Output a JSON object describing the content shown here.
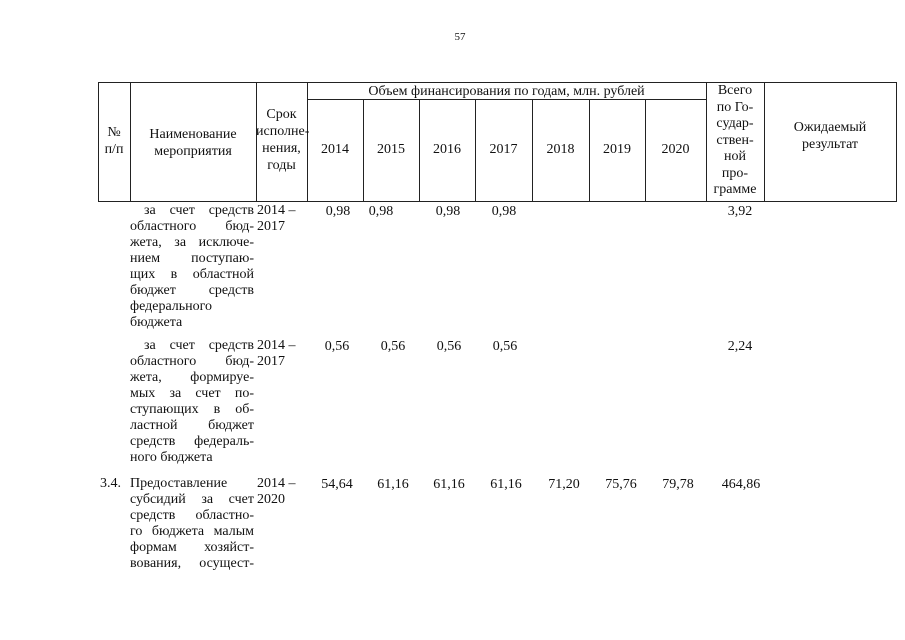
{
  "page_number": "57",
  "header": {
    "col_num_line1": "№",
    "col_num_line2": "п/п",
    "col_name_line1": "Наименование",
    "col_name_line2": "мероприятия",
    "col_term": [
      "Срок",
      "исполне-",
      "нения,",
      "годы"
    ],
    "funding_title": "Объем финансирования по годам, млн. рублей",
    "years": [
      "2014",
      "2015",
      "2016",
      "2017",
      "2018",
      "2019",
      "2020"
    ],
    "total": [
      "Всего",
      "по Го-",
      "судар-",
      "ствен-",
      "ной",
      "про-",
      "грамме"
    ],
    "result_line1": "Ожидаемый",
    "result_line2": "результат"
  },
  "rows": [
    {
      "num": "",
      "name": [
        "за счет средств",
        "областного бюд-",
        "жета, за исключе-",
        "нием поступаю-",
        "щих в областной",
        "бюджет средств",
        "федерального",
        "бюджета"
      ],
      "term": [
        "2014 –",
        "2017"
      ],
      "values": [
        "0,98",
        "0,98",
        "0,98",
        "0,98",
        "",
        "",
        ""
      ],
      "total": "3,92",
      "result": ""
    },
    {
      "num": "",
      "name": [
        "за счет средств",
        "областного бюд-",
        "жета, формируе-",
        "мых за счет по-",
        "ступающих в об-",
        "ластной бюджет",
        "средств федераль-",
        "ного бюджета"
      ],
      "term": [
        "2014 –",
        "2017"
      ],
      "values": [
        "0,56",
        "0,56",
        "0,56",
        "0,56",
        "",
        "",
        ""
      ],
      "total": "2,24",
      "result": ""
    },
    {
      "num": "3.4.",
      "name": [
        "Предоставление",
        "субсидий за счет",
        "средств областно-",
        "го бюджета малым",
        "формам хозяйст-",
        "вования, осущест-"
      ],
      "term": [
        "2014 –",
        "2020"
      ],
      "values": [
        "54,64",
        "61,16",
        "61,16",
        "61,16",
        "71,20",
        "75,76",
        "79,78"
      ],
      "total": "464,86",
      "result": ""
    }
  ]
}
